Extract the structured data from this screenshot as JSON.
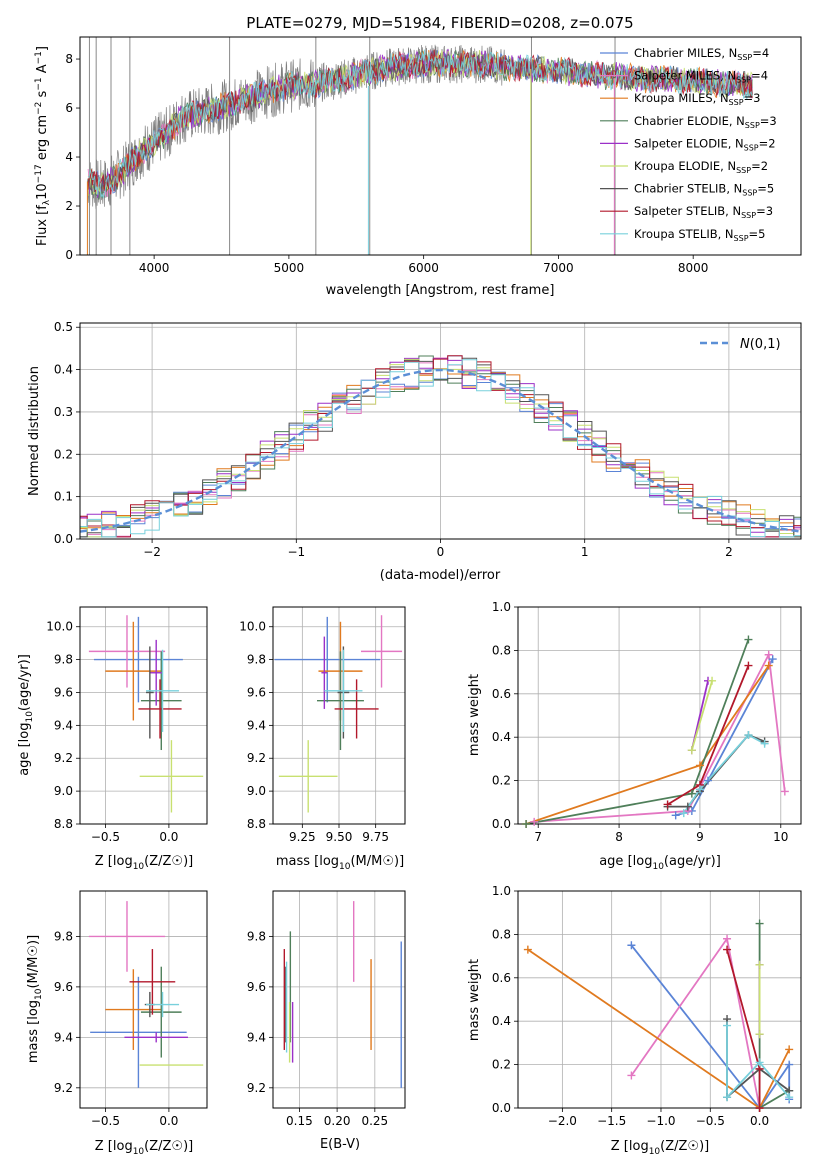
{
  "colors": {
    "Chabrier MILES": "#5b84d6",
    "Salpeter MILES": "#e377c2",
    "Kroupa MILES": "#e07a1f",
    "Chabrier ELODIE": "#4f7f5a",
    "Salpeter ELODIE": "#9b30c8",
    "Kroupa ELODIE": "#c8e070",
    "Chabrier STELIB": "#555555",
    "Salpeter STELIB": "#b2182b",
    "Kroupa STELIB": "#78d0dc"
  },
  "chart_data": [
    {
      "type": "line",
      "title": "PLATE=0279, MJD=51984, FIBERID=0208, z=0.075",
      "xlabel": "wavelength [Angstrom, rest frame]",
      "ylabel": "Flux [f_λ 10^-17 erg cm^-2 s^-1 A^-1]",
      "xlim": [
        3450,
        8800
      ],
      "ylim": [
        0,
        8.9
      ],
      "xticks": [
        4000,
        5000,
        6000,
        7000,
        8000
      ],
      "yticks": [
        0,
        2,
        4,
        6,
        8
      ],
      "grid": false,
      "legend_position": "right",
      "continuum": {
        "x": [
          3500,
          3600,
          3700,
          3800,
          3900,
          4000,
          4100,
          4200,
          4400,
          4600,
          4800,
          5000,
          5200,
          5400,
          5600,
          5800,
          6000,
          6200,
          6400,
          6600,
          6800,
          7000,
          7200,
          7400,
          7600,
          7800,
          8000,
          8200,
          8400
        ],
        "y": [
          3.0,
          2.8,
          3.1,
          3.6,
          4.2,
          4.6,
          5.0,
          5.6,
          5.9,
          6.2,
          6.6,
          6.9,
          7.0,
          7.2,
          7.5,
          7.7,
          7.8,
          7.8,
          7.8,
          7.7,
          7.6,
          7.5,
          7.4,
          7.3,
          7.2,
          7.2,
          7.1,
          7.0,
          6.9
        ]
      },
      "series": [
        {
          "name": "Chabrier MILES",
          "nssp": "4"
        },
        {
          "name": "Salpeter MILES",
          "nssp": "4"
        },
        {
          "name": "Kroupa MILES",
          "nssp": "3"
        },
        {
          "name": "Chabrier ELODIE",
          "nssp": "3"
        },
        {
          "name": "Salpeter ELODIE",
          "nssp": "2"
        },
        {
          "name": "Kroupa ELODIE",
          "nssp": "2"
        },
        {
          "name": "Chabrier STELIB",
          "nssp": "5"
        },
        {
          "name": "Salpeter STELIB",
          "nssp": "3"
        },
        {
          "name": "Kroupa STELIB",
          "nssp": "5"
        }
      ]
    },
    {
      "type": "line",
      "xlabel": "(data-model)/error",
      "ylabel": "Normed distribution",
      "xlim": [
        -2.5,
        2.5
      ],
      "ylim": [
        0,
        0.51
      ],
      "xticks": [
        -2,
        -1,
        0,
        1,
        2
      ],
      "yticks": [
        0.0,
        0.1,
        0.2,
        0.3,
        0.4,
        0.5
      ],
      "grid": true,
      "legend_position": "top-right",
      "reference_curve": "N(0,1)",
      "bin_width": 0.1,
      "histogram_series": [
        "Chabrier MILES",
        "Salpeter MILES",
        "Kroupa MILES",
        "Chabrier ELODIE",
        "Salpeter ELODIE",
        "Kroupa ELODIE",
        "Chabrier STELIB",
        "Salpeter STELIB",
        "Kroupa STELIB"
      ]
    },
    {
      "type": "scatter",
      "xlabel": "Z [log10(Z/Z☉)]",
      "ylabel": "age  [log10(age/yr)]",
      "xlim": [
        -0.7,
        0.3
      ],
      "ylim": [
        8.8,
        10.12
      ],
      "xticks": [
        -0.5,
        0.0
      ],
      "yticks": [
        8.8,
        9.0,
        9.2,
        9.4,
        9.6,
        9.8,
        10.0
      ],
      "grid": true,
      "points": [
        {
          "series": "Chabrier MILES",
          "x": -0.24,
          "xerr": 0.35,
          "y": 9.8,
          "yerr": 0.26
        },
        {
          "series": "Salpeter MILES",
          "x": -0.33,
          "xerr": 0.3,
          "y": 9.85,
          "yerr": 0.22
        },
        {
          "series": "Kroupa MILES",
          "x": -0.28,
          "xerr": 0.22,
          "y": 9.73,
          "yerr": 0.3
        },
        {
          "series": "Chabrier ELODIE",
          "x": -0.06,
          "xerr": 0.16,
          "y": 9.55,
          "yerr": 0.3
        },
        {
          "series": "Salpeter ELODIE",
          "x": -0.1,
          "xerr": 0.05,
          "y": 9.72,
          "yerr": 0.2
        },
        {
          "series": "Kroupa ELODIE",
          "x": 0.02,
          "xerr": 0.25,
          "y": 9.09,
          "yerr": 0.22
        },
        {
          "series": "Chabrier STELIB",
          "x": -0.15,
          "xerr": 0.03,
          "y": 9.6,
          "yerr": 0.28
        },
        {
          "series": "Salpeter STELIB",
          "x": -0.07,
          "xerr": 0.17,
          "y": 9.5,
          "yerr": 0.18
        },
        {
          "series": "Kroupa STELIB",
          "x": -0.05,
          "xerr": 0.13,
          "y": 9.61,
          "yerr": 0.25
        }
      ]
    },
    {
      "type": "scatter",
      "xlabel": "mass [log10(M/M☉)]",
      "xlim": [
        9.05,
        9.95
      ],
      "ylim": [
        8.8,
        10.12
      ],
      "xticks": [
        9.25,
        9.5,
        9.75
      ],
      "yticks": [
        8.8,
        9.0,
        9.2,
        9.4,
        9.6,
        9.8,
        10.0
      ],
      "grid": true,
      "points": [
        {
          "series": "Chabrier MILES",
          "x": 9.42,
          "xerr": 0.36,
          "y": 9.8,
          "yerr": 0.26
        },
        {
          "series": "Salpeter MILES",
          "x": 9.79,
          "xerr": 0.14,
          "y": 9.85,
          "yerr": 0.22
        },
        {
          "series": "Kroupa MILES",
          "x": 9.51,
          "xerr": 0.15,
          "y": 9.73,
          "yerr": 0.3
        },
        {
          "series": "Chabrier ELODIE",
          "x": 9.51,
          "xerr": 0.16,
          "y": 9.55,
          "yerr": 0.3
        },
        {
          "series": "Salpeter ELODIE",
          "x": 9.4,
          "xerr": 0.02,
          "y": 9.72,
          "yerr": 0.22
        },
        {
          "series": "Kroupa ELODIE",
          "x": 9.29,
          "xerr": 0.2,
          "y": 9.09,
          "yerr": 0.22
        },
        {
          "series": "Chabrier STELIB",
          "x": 9.53,
          "xerr": 0.04,
          "y": 9.6,
          "yerr": 0.28
        },
        {
          "series": "Salpeter STELIB",
          "x": 9.62,
          "xerr": 0.15,
          "y": 9.5,
          "yerr": 0.18
        },
        {
          "series": "Kroupa STELIB",
          "x": 9.53,
          "xerr": 0.13,
          "y": 9.61,
          "yerr": 0.25
        }
      ]
    },
    {
      "type": "line",
      "xlabel": "age  [log10(age/yr)]",
      "ylabel": "mass weight",
      "xlim": [
        6.75,
        10.25
      ],
      "ylim": [
        0,
        1.0
      ],
      "xticks": [
        7,
        8,
        9,
        10
      ],
      "yticks": [
        0.0,
        0.2,
        0.4,
        0.6,
        0.8,
        1.0
      ],
      "grid": true,
      "series": [
        {
          "series": "Chabrier MILES",
          "x": [
            8.7,
            8.9,
            9.1,
            9.9
          ],
          "y": [
            0.04,
            0.06,
            0.2,
            0.76
          ]
        },
        {
          "series": "Salpeter MILES",
          "x": [
            6.95,
            8.85,
            9.85,
            10.05
          ],
          "y": [
            0.01,
            0.06,
            0.78,
            0.15
          ]
        },
        {
          "series": "Kroupa MILES",
          "x": [
            6.85,
            9.0,
            9.85
          ],
          "y": [
            0.0,
            0.27,
            0.73
          ]
        },
        {
          "series": "Chabrier ELODIE",
          "x": [
            6.85,
            8.9,
            9.6
          ],
          "y": [
            0.0,
            0.14,
            0.85
          ]
        },
        {
          "series": "Salpeter ELODIE",
          "x": [
            8.9,
            9.1
          ],
          "y": [
            0.34,
            0.66
          ]
        },
        {
          "series": "Kroupa ELODIE",
          "x": [
            8.9,
            9.15
          ],
          "y": [
            0.34,
            0.66
          ]
        },
        {
          "series": "Chabrier STELIB",
          "x": [
            8.6,
            8.85,
            9.0,
            9.6,
            9.8
          ],
          "y": [
            0.08,
            0.08,
            0.15,
            0.41,
            0.38
          ]
        },
        {
          "series": "Salpeter STELIB",
          "x": [
            8.6,
            9.0,
            9.6
          ],
          "y": [
            0.09,
            0.18,
            0.73
          ]
        },
        {
          "series": "Kroupa STELIB",
          "x": [
            8.8,
            9.0,
            9.6,
            9.8
          ],
          "y": [
            0.05,
            0.16,
            0.41,
            0.37
          ]
        }
      ]
    },
    {
      "type": "scatter",
      "xlabel": "Z [log10(Z/Z☉)]",
      "ylabel": "mass [log10(M/M☉)]",
      "xlim": [
        -0.7,
        0.3
      ],
      "ylim": [
        9.12,
        9.98
      ],
      "xticks": [
        -0.5,
        0.0
      ],
      "yticks": [
        9.2,
        9.4,
        9.6,
        9.8
      ],
      "grid": true,
      "points": [
        {
          "series": "Chabrier MILES",
          "x": -0.24,
          "xerr": 0.38,
          "y": 9.42,
          "yerr": 0.22
        },
        {
          "series": "Salpeter MILES",
          "x": -0.33,
          "xerr": 0.3,
          "y": 9.8,
          "yerr": 0.14
        },
        {
          "series": "Kroupa MILES",
          "x": -0.28,
          "xerr": 0.22,
          "y": 9.51,
          "yerr": 0.16
        },
        {
          "series": "Chabrier ELODIE",
          "x": -0.06,
          "xerr": 0.16,
          "y": 9.5,
          "yerr": 0.18
        },
        {
          "series": "Salpeter ELODIE",
          "x": -0.1,
          "xerr": 0.25,
          "y": 9.4,
          "yerr": 0.02
        },
        {
          "series": "Kroupa ELODIE",
          "x": 0.02,
          "xerr": 0.25,
          "y": 9.29,
          "yerr": 0.0
        },
        {
          "series": "Chabrier STELIB",
          "x": -0.15,
          "xerr": 0.04,
          "y": 9.53,
          "yerr": 0.05
        },
        {
          "series": "Salpeter STELIB",
          "x": -0.13,
          "xerr": 0.18,
          "y": 9.62,
          "yerr": 0.13
        },
        {
          "series": "Kroupa STELIB",
          "x": -0.05,
          "xerr": 0.13,
          "y": 9.53,
          "yerr": 0.05
        }
      ]
    },
    {
      "type": "scatter",
      "xlabel": "E(B-V)",
      "xlim": [
        0.115,
        0.29
      ],
      "ylim": [
        9.12,
        9.98
      ],
      "xticks": [
        0.15,
        0.2,
        0.25
      ],
      "yticks": [
        9.2,
        9.4,
        9.6,
        9.8
      ],
      "grid": true,
      "points": [
        {
          "series": "Chabrier MILES",
          "x": 0.285,
          "y": 9.49,
          "yerr": 0.29
        },
        {
          "series": "Salpeter MILES",
          "x": 0.222,
          "y": 9.78,
          "yerr": 0.16
        },
        {
          "series": "Kroupa MILES",
          "x": 0.245,
          "y": 9.53,
          "yerr": 0.18
        },
        {
          "series": "Chabrier ELODIE",
          "x": 0.138,
          "y": 9.6,
          "yerr": 0.22
        },
        {
          "series": "Salpeter ELODIE",
          "x": 0.141,
          "y": 9.42,
          "yerr": 0.12
        },
        {
          "series": "Kroupa ELODIE",
          "x": 0.137,
          "y": 9.42,
          "yerr": 0.12
        },
        {
          "series": "Chabrier STELIB",
          "x": 0.132,
          "y": 9.53,
          "yerr": 0.15
        },
        {
          "series": "Salpeter STELIB",
          "x": 0.13,
          "y": 9.55,
          "yerr": 0.2
        },
        {
          "series": "Kroupa STELIB",
          "x": 0.133,
          "y": 9.52,
          "yerr": 0.18
        }
      ]
    },
    {
      "type": "line",
      "xlabel": "Z [log10(Z/Z☉)]",
      "ylabel": "mass weight",
      "xlim": [
        -2.45,
        0.42
      ],
      "ylim": [
        0,
        1.0
      ],
      "xticks": [
        -2.0,
        -1.5,
        -1.0,
        -0.5,
        0.0
      ],
      "yticks": [
        0.0,
        0.2,
        0.4,
        0.6,
        0.8,
        1.0
      ],
      "grid": true,
      "series": [
        {
          "series": "Chabrier MILES",
          "x": [
            -1.3,
            0.0,
            0.3,
            0.3
          ],
          "y": [
            0.75,
            0.0,
            0.2,
            0.04
          ]
        },
        {
          "series": "Salpeter MILES",
          "x": [
            -1.3,
            -0.33,
            0.0
          ],
          "y": [
            0.15,
            0.78,
            0.0
          ]
        },
        {
          "series": "Kroupa MILES",
          "x": [
            -2.35,
            0.0,
            0.3
          ],
          "y": [
            0.73,
            0.0,
            0.27
          ]
        },
        {
          "series": "Chabrier ELODIE",
          "x": [
            0.0,
            0.0,
            0.3
          ],
          "y": [
            0.85,
            0.0,
            0.08
          ]
        },
        {
          "series": "Salpeter ELODIE",
          "x": [
            0.0,
            0.0
          ],
          "y": [
            0.66,
            0.34
          ]
        },
        {
          "series": "Kroupa ELODIE",
          "x": [
            0.0,
            0.0
          ],
          "y": [
            0.66,
            0.34
          ]
        },
        {
          "series": "Chabrier STELIB",
          "x": [
            -0.33,
            -0.33,
            0.0,
            0.3
          ],
          "y": [
            0.41,
            0.05,
            0.18,
            0.08
          ]
        },
        {
          "series": "Salpeter STELIB",
          "x": [
            -0.33,
            0.0,
            0.0
          ],
          "y": [
            0.73,
            0.18,
            0.0
          ]
        },
        {
          "series": "Kroupa STELIB",
          "x": [
            -0.33,
            -0.33,
            0.0,
            0.3
          ],
          "y": [
            0.38,
            0.05,
            0.21,
            0.05
          ]
        }
      ]
    }
  ]
}
